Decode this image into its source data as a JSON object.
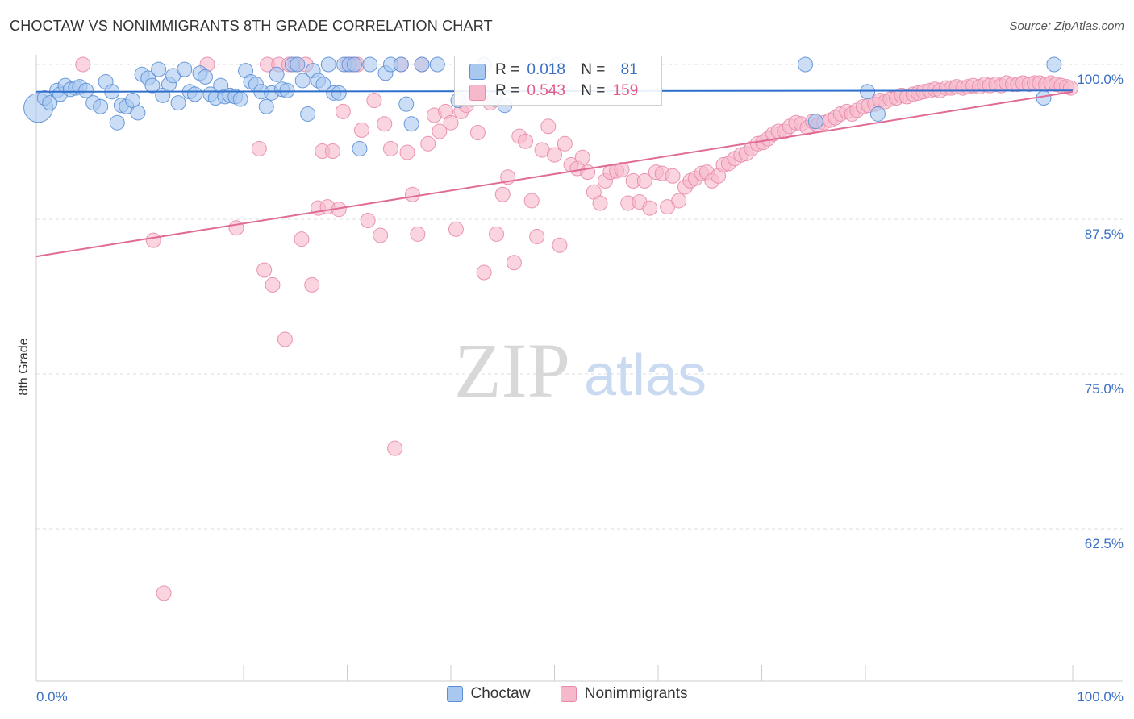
{
  "header": {
    "title": "CHOCTAW VS NONIMMIGRANTS 8TH GRADE CORRELATION CHART",
    "source": "Source: ZipAtlas.com"
  },
  "watermark": {
    "zip": "ZIP",
    "atlas": "atlas"
  },
  "colors": {
    "choctaw_fill": "#a9c8f0",
    "choctaw_stroke": "#5b8fd6",
    "choctaw_line": "#2f6fcc",
    "nonimm_fill": "#f6b9cc",
    "nonimm_stroke": "#e88aa8",
    "nonimm_line": "#e06b94",
    "axis_label": "#3a6fc4"
  },
  "legend_top": {
    "rows": [
      {
        "series": "Choctaw",
        "r_label": "R =",
        "r_value": "0.018",
        "n_label": "N =",
        "n_value": "81"
      },
      {
        "series": "Nonimmigrants",
        "r_label": "R =",
        "r_value": "0.543",
        "n_label": "N =",
        "n_value": "159"
      }
    ]
  },
  "legend_bottom": [
    "Choctaw",
    "Nonimmigrants"
  ],
  "chart_data": {
    "type": "scatter",
    "title": "CHOCTAW VS NONIMMIGRANTS 8TH GRADE CORRELATION CHART",
    "xlabel": "",
    "ylabel": "8th Grade",
    "xlim": [
      0,
      100
    ],
    "ylim": [
      50,
      100
    ],
    "x_tick_labels": [
      "0.0%",
      "100.0%"
    ],
    "y_ticks": [
      62.5,
      75.0,
      87.5,
      100.0
    ],
    "y_tick_labels": [
      "62.5%",
      "75.0%",
      "87.5%",
      "100.0%"
    ],
    "grid": "horizontal dashed",
    "legend_position": "bottom-center",
    "series": [
      {
        "name": "Choctaw",
        "trend": {
          "x": [
            0,
            100
          ],
          "y": [
            97.8,
            97.9
          ]
        },
        "points": [
          [
            0.2,
            96.5,
            3
          ],
          [
            0.8,
            97.3,
            1
          ],
          [
            1.3,
            96.9,
            1
          ],
          [
            2.0,
            97.9,
            1
          ],
          [
            2.3,
            97.6,
            1
          ],
          [
            2.8,
            98.3,
            1
          ],
          [
            3.3,
            98.0,
            1
          ],
          [
            3.8,
            98.1,
            1
          ],
          [
            4.2,
            98.2,
            1
          ],
          [
            4.8,
            97.9,
            1
          ],
          [
            5.5,
            96.9,
            1
          ],
          [
            6.2,
            96.6,
            1
          ],
          [
            6.7,
            98.6,
            1
          ],
          [
            7.3,
            97.8,
            1
          ],
          [
            7.8,
            95.3,
            1
          ],
          [
            8.2,
            96.7,
            1
          ],
          [
            8.7,
            96.6,
            1
          ],
          [
            9.3,
            97.1,
            1
          ],
          [
            9.8,
            96.1,
            1
          ],
          [
            10.2,
            99.2,
            1
          ],
          [
            10.8,
            98.9,
            1
          ],
          [
            11.2,
            98.3,
            1
          ],
          [
            11.8,
            99.6,
            1
          ],
          [
            12.2,
            97.5,
            1
          ],
          [
            12.8,
            98.4,
            1
          ],
          [
            13.2,
            99.1,
            1
          ],
          [
            13.7,
            96.9,
            1
          ],
          [
            14.3,
            99.6,
            1
          ],
          [
            14.8,
            97.8,
            1
          ],
          [
            15.3,
            97.6,
            1
          ],
          [
            15.8,
            99.3,
            1
          ],
          [
            16.3,
            99.0,
            1
          ],
          [
            16.8,
            97.6,
            1
          ],
          [
            17.3,
            97.3,
            1
          ],
          [
            17.8,
            98.3,
            1
          ],
          [
            18.2,
            97.4,
            1
          ],
          [
            18.7,
            97.5,
            1
          ],
          [
            19.2,
            97.4,
            1
          ],
          [
            19.7,
            97.2,
            1
          ],
          [
            20.2,
            99.5,
            1
          ],
          [
            20.7,
            98.6,
            1
          ],
          [
            21.2,
            98.4,
            1
          ],
          [
            21.7,
            97.8,
            1
          ],
          [
            22.2,
            96.6,
            1
          ],
          [
            22.7,
            97.7,
            1
          ],
          [
            23.2,
            99.2,
            1
          ],
          [
            23.7,
            98.0,
            1
          ],
          [
            24.2,
            97.9,
            1
          ],
          [
            24.7,
            100.0,
            1
          ],
          [
            25.2,
            100.0,
            1
          ],
          [
            25.7,
            98.7,
            1
          ],
          [
            26.2,
            96.0,
            1
          ],
          [
            26.7,
            99.5,
            1
          ],
          [
            27.2,
            98.7,
            1
          ],
          [
            27.7,
            98.4,
            1
          ],
          [
            28.2,
            100.0,
            1
          ],
          [
            28.7,
            97.7,
            1
          ],
          [
            29.2,
            97.7,
            1
          ],
          [
            29.7,
            100.0,
            1
          ],
          [
            30.2,
            100.0,
            1
          ],
          [
            30.7,
            100.0,
            1
          ],
          [
            31.2,
            93.2,
            1
          ],
          [
            32.2,
            100.0,
            1
          ],
          [
            33.7,
            99.3,
            1
          ],
          [
            34.2,
            100.0,
            1
          ],
          [
            35.2,
            100.0,
            1
          ],
          [
            35.7,
            96.8,
            1
          ],
          [
            36.2,
            95.2,
            1
          ],
          [
            37.2,
            100.0,
            1
          ],
          [
            38.7,
            100.0,
            1
          ],
          [
            40.7,
            97.1,
            1
          ],
          [
            43.2,
            100.0,
            1
          ],
          [
            44.2,
            97.2,
            1
          ],
          [
            45.2,
            96.7,
            1
          ],
          [
            50.2,
            100.0,
            1
          ],
          [
            74.2,
            100.0,
            1
          ],
          [
            75.2,
            95.4,
            1
          ],
          [
            80.2,
            97.8,
            1
          ],
          [
            81.2,
            96.0,
            1
          ],
          [
            97.2,
            97.3,
            1
          ],
          [
            98.2,
            100.0,
            1
          ]
        ]
      },
      {
        "name": "Nonimmigrants",
        "trend": {
          "x": [
            0,
            100
          ],
          "y": [
            84.5,
            97.8
          ]
        },
        "points": [
          [
            4.5,
            100.0,
            1
          ],
          [
            11.3,
            85.8,
            1
          ],
          [
            12.3,
            57.3,
            1
          ],
          [
            16.5,
            100.0,
            1
          ],
          [
            19.3,
            86.8,
            1
          ],
          [
            21.5,
            93.2,
            1
          ],
          [
            22.0,
            83.4,
            1
          ],
          [
            22.3,
            100.0,
            1
          ],
          [
            22.8,
            82.2,
            1
          ],
          [
            23.4,
            100.0,
            1
          ],
          [
            24.0,
            77.8,
            1
          ],
          [
            24.4,
            100.0,
            1
          ],
          [
            25.0,
            100.0,
            1
          ],
          [
            25.6,
            85.9,
            1
          ],
          [
            26.0,
            100.0,
            1
          ],
          [
            26.6,
            82.2,
            1
          ],
          [
            27.2,
            88.4,
            1
          ],
          [
            27.6,
            93.0,
            1
          ],
          [
            28.1,
            88.5,
            1
          ],
          [
            28.6,
            93.0,
            1
          ],
          [
            29.2,
            88.3,
            1
          ],
          [
            29.6,
            96.2,
            1
          ],
          [
            30.0,
            100.0,
            1
          ],
          [
            30.5,
            100.0,
            1
          ],
          [
            31.0,
            100.0,
            1
          ],
          [
            31.4,
            94.7,
            1
          ],
          [
            32.0,
            87.4,
            1
          ],
          [
            32.6,
            97.1,
            1
          ],
          [
            33.2,
            86.2,
            1
          ],
          [
            33.6,
            95.2,
            1
          ],
          [
            34.2,
            93.2,
            1
          ],
          [
            34.6,
            69.0,
            1
          ],
          [
            35.2,
            100.0,
            1
          ],
          [
            35.8,
            92.9,
            1
          ],
          [
            36.3,
            89.5,
            1
          ],
          [
            36.8,
            86.3,
            1
          ],
          [
            37.2,
            100.0,
            1
          ],
          [
            37.8,
            93.6,
            1
          ],
          [
            38.4,
            95.9,
            1
          ],
          [
            38.9,
            94.6,
            1
          ],
          [
            39.5,
            96.2,
            1
          ],
          [
            40.0,
            95.3,
            1
          ],
          [
            40.5,
            86.7,
            1
          ],
          [
            41.0,
            96.2,
            1
          ],
          [
            41.5,
            96.7,
            1
          ],
          [
            42.0,
            97.2,
            1
          ],
          [
            42.6,
            94.5,
            1
          ],
          [
            43.2,
            83.2,
            1
          ],
          [
            43.8,
            96.9,
            1
          ],
          [
            44.4,
            86.3,
            1
          ],
          [
            45.0,
            89.5,
            1
          ],
          [
            45.5,
            90.9,
            1
          ],
          [
            46.1,
            84.0,
            1
          ],
          [
            46.6,
            94.2,
            1
          ],
          [
            47.2,
            93.8,
            1
          ],
          [
            47.8,
            89.0,
            1
          ],
          [
            48.3,
            86.1,
            1
          ],
          [
            48.8,
            93.1,
            1
          ],
          [
            49.4,
            95.0,
            1
          ],
          [
            50.0,
            92.7,
            1
          ],
          [
            50.5,
            85.4,
            1
          ],
          [
            51.0,
            93.6,
            1
          ],
          [
            51.6,
            91.9,
            1
          ],
          [
            52.2,
            91.6,
            1
          ],
          [
            52.7,
            92.5,
            1
          ],
          [
            53.2,
            91.3,
            1
          ],
          [
            53.8,
            89.7,
            1
          ],
          [
            54.4,
            88.8,
            1
          ],
          [
            54.9,
            90.6,
            1
          ],
          [
            55.4,
            91.3,
            1
          ],
          [
            56.0,
            91.4,
            1
          ],
          [
            56.5,
            91.5,
            1
          ],
          [
            57.1,
            88.8,
            1
          ],
          [
            57.6,
            90.6,
            1
          ],
          [
            58.2,
            88.9,
            1
          ],
          [
            58.7,
            90.6,
            1
          ],
          [
            59.2,
            88.4,
            1
          ],
          [
            59.8,
            91.3,
            1
          ],
          [
            60.4,
            91.2,
            1
          ],
          [
            60.9,
            88.5,
            1
          ],
          [
            61.4,
            91.0,
            1
          ],
          [
            62.0,
            89.0,
            1
          ],
          [
            62.6,
            90.1,
            1
          ],
          [
            63.1,
            90.6,
            1
          ],
          [
            63.6,
            90.8,
            1
          ],
          [
            64.2,
            91.2,
            1
          ],
          [
            64.7,
            91.3,
            1
          ],
          [
            65.2,
            90.6,
            1
          ],
          [
            65.8,
            91.0,
            1
          ],
          [
            66.3,
            91.9,
            1
          ],
          [
            66.8,
            92.0,
            1
          ],
          [
            67.4,
            92.4,
            1
          ],
          [
            68.0,
            92.7,
            1
          ],
          [
            68.5,
            92.8,
            1
          ],
          [
            69.0,
            93.2,
            1
          ],
          [
            69.6,
            93.6,
            1
          ],
          [
            70.1,
            93.7,
            1
          ],
          [
            70.6,
            94.0,
            1
          ],
          [
            71.1,
            94.4,
            1
          ],
          [
            71.6,
            94.6,
            1
          ],
          [
            72.2,
            94.6,
            1
          ],
          [
            72.7,
            95.0,
            1
          ],
          [
            73.3,
            95.3,
            1
          ],
          [
            73.8,
            95.2,
            1
          ],
          [
            74.4,
            94.9,
            1
          ],
          [
            74.9,
            95.4,
            1
          ],
          [
            75.4,
            95.1,
            1
          ],
          [
            76.0,
            95.3,
            1
          ],
          [
            76.6,
            95.5,
            1
          ],
          [
            77.1,
            95.7,
            1
          ],
          [
            77.6,
            96.0,
            1
          ],
          [
            78.2,
            96.2,
            1
          ],
          [
            78.7,
            96.0,
            1
          ],
          [
            79.2,
            96.3,
            1
          ],
          [
            79.8,
            96.6,
            1
          ],
          [
            80.3,
            96.7,
            1
          ],
          [
            80.9,
            96.8,
            1
          ],
          [
            81.4,
            97.1,
            1
          ],
          [
            81.9,
            97.0,
            1
          ],
          [
            82.4,
            97.2,
            1
          ],
          [
            83.0,
            97.3,
            1
          ],
          [
            83.5,
            97.5,
            1
          ],
          [
            84.0,
            97.4,
            1
          ],
          [
            84.6,
            97.6,
            1
          ],
          [
            85.1,
            97.7,
            1
          ],
          [
            85.6,
            97.8,
            1
          ],
          [
            86.2,
            97.9,
            1
          ],
          [
            86.7,
            98.0,
            1
          ],
          [
            87.2,
            97.9,
            1
          ],
          [
            87.8,
            98.1,
            1
          ],
          [
            88.3,
            98.1,
            1
          ],
          [
            88.8,
            98.2,
            1
          ],
          [
            89.4,
            98.1,
            1
          ],
          [
            89.9,
            98.2,
            1
          ],
          [
            90.4,
            98.3,
            1
          ],
          [
            91.0,
            98.2,
            1
          ],
          [
            91.5,
            98.4,
            1
          ],
          [
            92.0,
            98.3,
            1
          ],
          [
            92.6,
            98.4,
            1
          ],
          [
            93.1,
            98.3,
            1
          ],
          [
            93.6,
            98.5,
            1
          ],
          [
            94.2,
            98.4,
            1
          ],
          [
            94.7,
            98.4,
            1
          ],
          [
            95.2,
            98.5,
            1
          ],
          [
            95.8,
            98.4,
            1
          ],
          [
            96.3,
            98.5,
            1
          ],
          [
            96.8,
            98.5,
            1
          ],
          [
            97.4,
            98.4,
            1
          ],
          [
            97.9,
            98.5,
            1
          ],
          [
            98.4,
            98.4,
            1
          ],
          [
            98.9,
            98.3,
            1
          ],
          [
            99.4,
            98.2,
            1
          ],
          [
            99.8,
            98.1,
            1
          ]
        ]
      }
    ]
  }
}
